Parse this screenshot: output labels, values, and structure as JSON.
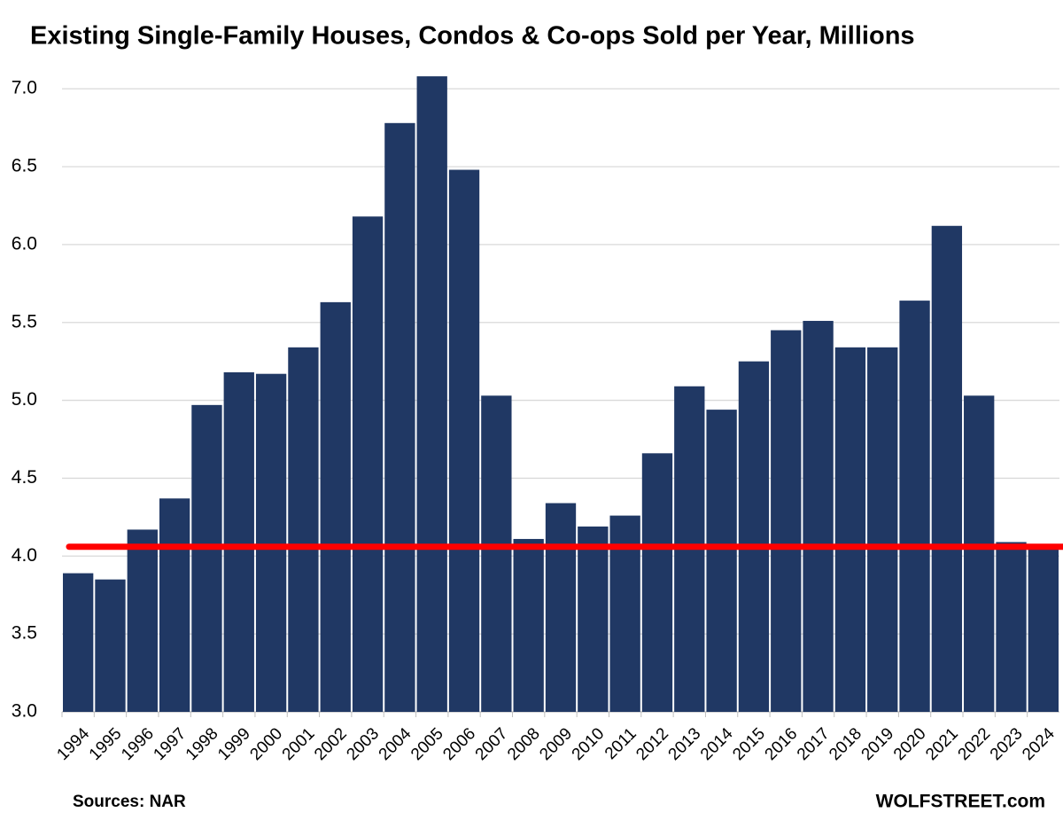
{
  "chart_data": {
    "type": "bar",
    "title": "Existing Single-Family Houses, Condos & Co-ops Sold per Year, Millions",
    "source": "Sources: NAR",
    "watermark": "WOLFSTREET.com",
    "categories": [
      "1994",
      "1995",
      "1996",
      "1997",
      "1998",
      "1999",
      "2000",
      "2001",
      "2002",
      "2003",
      "2004",
      "2005",
      "2006",
      "2007",
      "2008",
      "2009",
      "2010",
      "2011",
      "2012",
      "2013",
      "2014",
      "2015",
      "2016",
      "2017",
      "2018",
      "2019",
      "2020",
      "2021",
      "2022",
      "2023",
      "2024"
    ],
    "values": [
      3.89,
      3.85,
      4.17,
      4.37,
      4.97,
      5.18,
      5.17,
      5.34,
      5.63,
      6.18,
      6.78,
      7.08,
      6.48,
      5.03,
      4.11,
      4.34,
      4.19,
      4.26,
      4.66,
      5.09,
      4.94,
      5.25,
      5.45,
      5.51,
      5.34,
      5.34,
      5.64,
      6.12,
      5.03,
      4.09,
      4.06
    ],
    "color": "#203864",
    "ylim": [
      3,
      7.2
    ],
    "yticks": [
      {
        "value": 3,
        "label": "3.0"
      },
      {
        "value": 3.5,
        "label": "3.5"
      },
      {
        "value": 4,
        "label": "4.0"
      },
      {
        "value": 4.5,
        "label": "4.5"
      },
      {
        "value": 5,
        "label": "5.0"
      },
      {
        "value": 5.5,
        "label": "5.5"
      },
      {
        "value": 6,
        "label": "6.0"
      },
      {
        "value": 6.5,
        "label": "6.5"
      },
      {
        "value": 7,
        "label": "7.0"
      }
    ],
    "grid": true,
    "reference_line": {
      "value": 4.06,
      "color": "#ff0000"
    }
  }
}
